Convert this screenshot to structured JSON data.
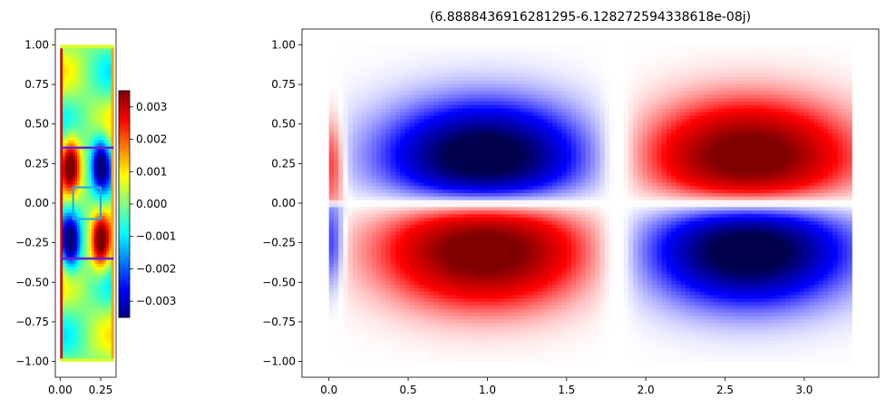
{
  "chart_data": [
    {
      "type": "heatmap",
      "title": "",
      "xlabel": "",
      "ylabel": "",
      "colormap": "jet",
      "xlim": [
        -0.03,
        0.345
      ],
      "ylim": [
        -1.1,
        1.1
      ],
      "xticks": [
        {
          "value": 0.0,
          "label": "0.00"
        },
        {
          "value": 0.25,
          "label": "0.25"
        }
      ],
      "yticks": [
        {
          "value": 1.0,
          "label": "1.00"
        },
        {
          "value": 0.75,
          "label": "0.75"
        },
        {
          "value": 0.5,
          "label": "0.50"
        },
        {
          "value": 0.25,
          "label": "0.25"
        },
        {
          "value": 0.0,
          "label": "0.00"
        },
        {
          "value": -0.25,
          "label": "−0.25"
        },
        {
          "value": -0.5,
          "label": "−0.50"
        },
        {
          "value": -0.75,
          "label": "−0.75"
        },
        {
          "value": -1.0,
          "label": "−1.00"
        }
      ],
      "domain": {
        "x": [
          0.0,
          0.33
        ],
        "y": [
          -1.0,
          1.0
        ]
      },
      "overlays": {
        "horizontal_lines": [
          {
            "y": 0.35,
            "x": [
              0.0,
              0.33
            ],
            "color": "#6a1fd8"
          },
          {
            "y": -0.35,
            "x": [
              0.0,
              0.33
            ],
            "color": "#6a1fd8"
          }
        ],
        "box": {
          "x": [
            0.08,
            0.25
          ],
          "y": [
            -0.1,
            0.1
          ],
          "color": "#22a6e8"
        }
      },
      "colorbar": {
        "vmin": -0.0035,
        "vmax": 0.0035,
        "ticks": [
          {
            "value": 0.003,
            "label": "0.003"
          },
          {
            "value": 0.002,
            "label": "0.002"
          },
          {
            "value": 0.001,
            "label": "0.001"
          },
          {
            "value": 0.0,
            "label": "0.000"
          },
          {
            "value": -0.001,
            "label": "−0.001"
          },
          {
            "value": -0.002,
            "label": "−0.002"
          },
          {
            "value": -0.003,
            "label": "−0.003"
          }
        ]
      },
      "field": {
        "lobes_x": [
          0.065,
          0.25
        ],
        "lobes_y": [
          0.25,
          -0.25
        ],
        "peak": 0.0035
      }
    },
    {
      "type": "heatmap",
      "title": "(6.8888436916281295-6.128272594338618e-08j)",
      "xlabel": "",
      "ylabel": "",
      "colormap": "seismic",
      "xlim": [
        -0.17,
        3.47
      ],
      "ylim": [
        -1.1,
        1.1
      ],
      "xticks": [
        {
          "value": 0.0,
          "label": "0.0"
        },
        {
          "value": 0.5,
          "label": "0.5"
        },
        {
          "value": 1.0,
          "label": "1.0"
        },
        {
          "value": 1.5,
          "label": "1.5"
        },
        {
          "value": 2.0,
          "label": "2.0"
        },
        {
          "value": 2.5,
          "label": "2.5"
        },
        {
          "value": 3.0,
          "label": "3.0"
        }
      ],
      "yticks": [
        {
          "value": 1.0,
          "label": "1.00"
        },
        {
          "value": 0.75,
          "label": "0.75"
        },
        {
          "value": 0.5,
          "label": "0.50"
        },
        {
          "value": 0.25,
          "label": "0.25"
        },
        {
          "value": 0.0,
          "label": "0.00"
        },
        {
          "value": -0.25,
          "label": "−0.25"
        },
        {
          "value": -0.5,
          "label": "−0.50"
        },
        {
          "value": -0.75,
          "label": "−0.75"
        },
        {
          "value": -1.0,
          "label": "−1.00"
        }
      ],
      "domain": {
        "x": [
          0.0,
          3.3
        ],
        "y": [
          -1.0,
          1.0
        ]
      },
      "field": {
        "lobes": [
          {
            "x": 0.98,
            "y": 0.27,
            "sign": -1
          },
          {
            "x": 2.65,
            "y": 0.27,
            "sign": 1
          },
          {
            "x": 0.98,
            "y": -0.27,
            "sign": 1
          },
          {
            "x": 2.65,
            "y": -0.27,
            "sign": -1
          }
        ],
        "nodal_x": 1.82
      }
    }
  ]
}
